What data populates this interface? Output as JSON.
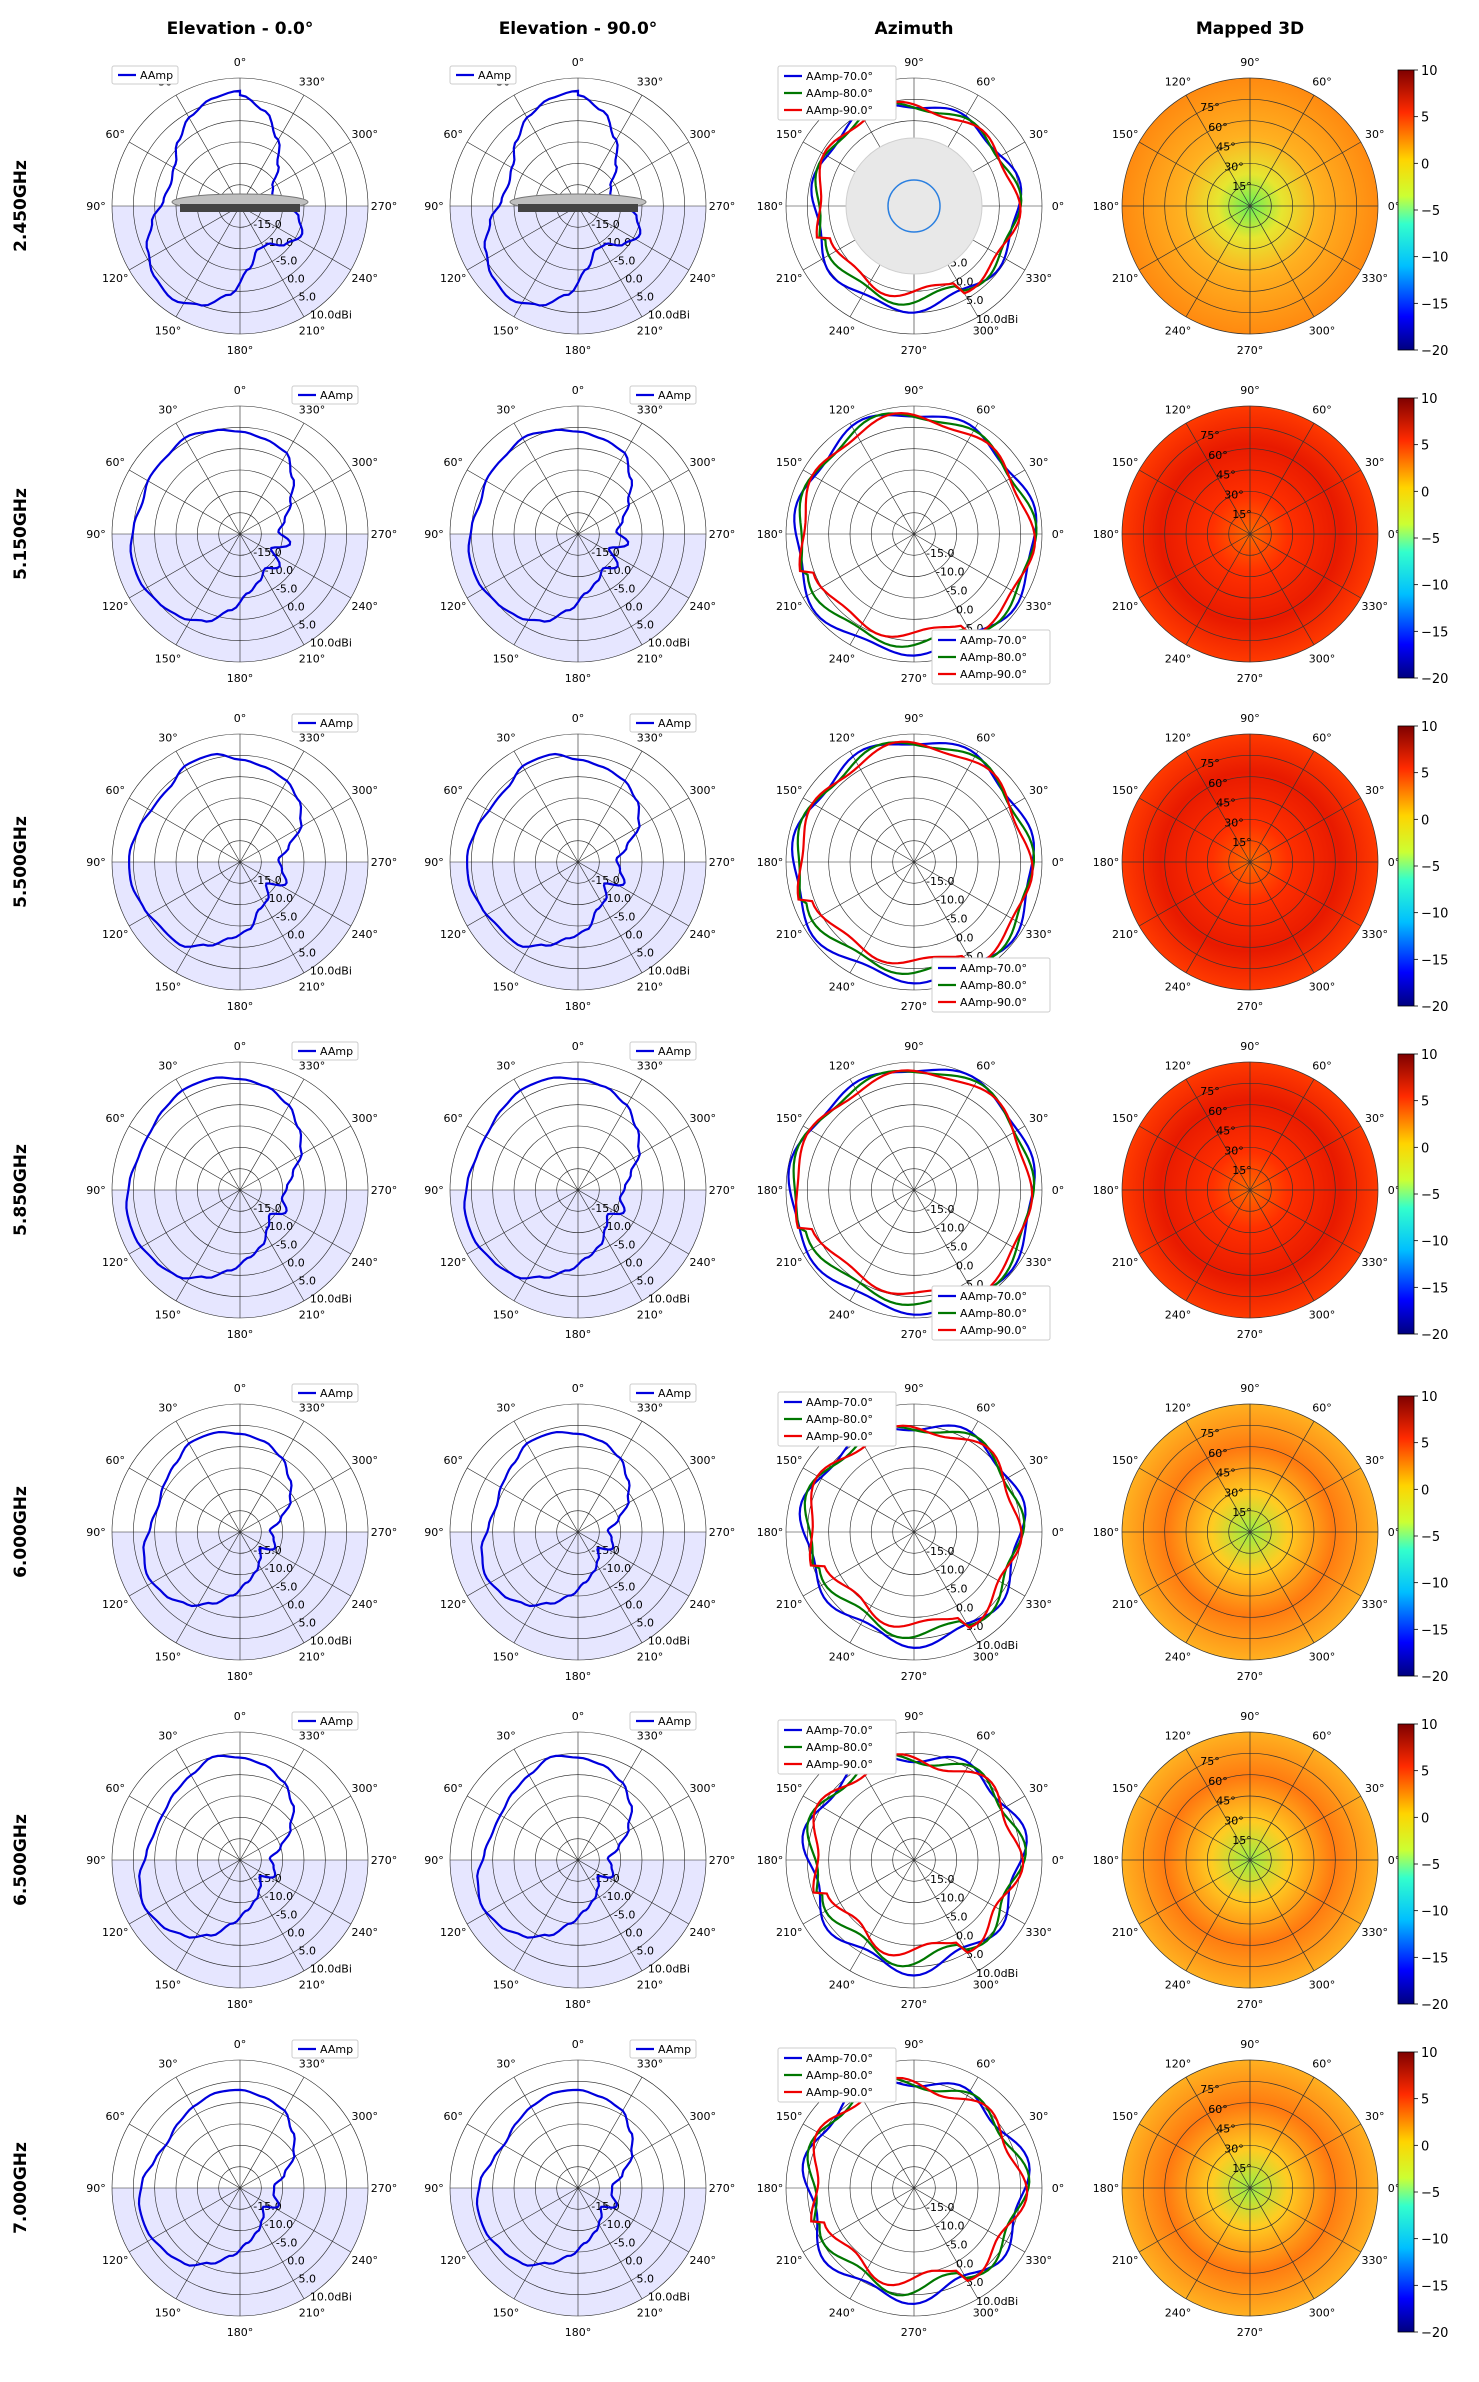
{
  "page": {
    "column_titles": [
      "Elevation - 0.0°",
      "Elevation - 90.0°",
      "Azimuth",
      "Mapped 3D"
    ],
    "row_labels": [
      "2.450GHz",
      "5.150GHz",
      "5.500GHz",
      "5.850GHz",
      "6.000GHz",
      "6.500GHz",
      "7.000GHz"
    ]
  },
  "chart_data": {
    "type": "polar",
    "description_units": "dBi",
    "radial_axis": {
      "min": -20,
      "max": 10,
      "tick_labels": [
        "-15.0",
        "-10.0",
        "-5.0",
        "0.0",
        "5.0",
        "10.0dBi"
      ]
    },
    "elevation_angle_labels": [
      "0°",
      "30°",
      "60°",
      "90°",
      "120°",
      "150°",
      "180°",
      "210°",
      "240°",
      "270°",
      "300°",
      "330°"
    ],
    "azimuth_angle_labels": [
      "0°",
      "30°",
      "60°",
      "90°",
      "120°",
      "150°",
      "180°",
      "210°",
      "240°",
      "270°",
      "300°",
      "330°"
    ],
    "elevation_legend": [
      "AAmp"
    ],
    "azimuth_legend": [
      "AAmp-70.0°",
      "AAmp-80.0°",
      "AAmp-90.0°"
    ],
    "mapped_3d": {
      "theta_labels": [
        "15°",
        "30°",
        "45°",
        "60°",
        "75°"
      ],
      "colorbar_ticks": [
        "10",
        "5",
        "0",
        "−5",
        "−10",
        "−15",
        "−20"
      ],
      "colorbar_range": [
        -20,
        10
      ]
    },
    "colors": {
      "series_blue": "#0000dd",
      "series_green": "#007700",
      "series_red": "#ee0000",
      "shade": "#e6e6ff"
    },
    "rows": [
      {
        "freq": "2.450GHz",
        "elev0": [
          7,
          6,
          4,
          1,
          -2,
          -3,
          -2,
          1,
          4,
          6,
          7,
          5,
          1,
          -5,
          -9,
          -9,
          -6,
          -4,
          -6,
          -10,
          -12,
          -11,
          -7,
          -2,
          3,
          6
        ],
        "elev90": [
          7,
          6,
          4,
          1,
          -2,
          -3,
          -2,
          1,
          4,
          6,
          7,
          5,
          1,
          -5,
          -9,
          -9,
          -6,
          -4,
          -6,
          -10,
          -12,
          -11,
          -7,
          -2,
          3,
          6
        ],
        "az": [
          {
            "base": 4.0,
            "amp": 1.0
          },
          {
            "base": 3.6,
            "amp": 1.0
          },
          {
            "base": 3.4,
            "amp": 1.0
          }
        ],
        "heat": [
          -4,
          1,
          4
        ]
      },
      {
        "freq": "5.150GHz",
        "elev0": [
          4,
          5,
          6,
          5,
          5,
          4,
          5,
          6,
          6,
          5,
          4,
          2,
          -2,
          -6,
          -8,
          -10,
          -8,
          -12,
          -8,
          -11,
          -9,
          -6,
          -2,
          2,
          3,
          4
        ],
        "elev90": [
          4,
          5,
          6,
          5,
          5,
          4,
          5,
          6,
          6,
          5,
          4,
          2,
          -2,
          -6,
          -8,
          -10,
          -8,
          -12,
          -8,
          -11,
          -9,
          -6,
          -2,
          2,
          3,
          4
        ],
        "az": [
          {
            "base": 8.0,
            "amp": 1.0
          },
          {
            "base": 7.5,
            "amp": 1.0
          },
          {
            "base": 7.0,
            "amp": 1.0
          }
        ],
        "heat": [
          4,
          6,
          7
        ]
      },
      {
        "freq": "5.500GHz",
        "elev0": [
          4,
          6,
          6,
          4,
          4,
          5,
          6,
          6,
          5,
          4,
          4,
          1,
          -2,
          -4,
          -8,
          -9,
          -12,
          -8,
          -10,
          -11,
          -8,
          -3,
          0,
          2,
          3,
          4
        ],
        "elev90": [
          4,
          6,
          6,
          4,
          4,
          5,
          6,
          6,
          5,
          4,
          4,
          1,
          -2,
          -4,
          -8,
          -9,
          -12,
          -8,
          -10,
          -11,
          -8,
          -3,
          0,
          2,
          3,
          4
        ],
        "az": [
          {
            "base": 8.0,
            "amp": 1.0
          },
          {
            "base": 7.5,
            "amp": 1.0
          },
          {
            "base": 7.0,
            "amp": 1.0
          }
        ],
        "heat": [
          4,
          6,
          7
        ]
      },
      {
        "freq": "5.850GHz",
        "elev0": [
          6,
          7,
          7,
          6,
          5,
          5,
          6,
          7,
          7,
          6,
          5,
          2,
          -1,
          -4,
          -6,
          -9,
          -11,
          -8,
          -10,
          -9,
          -7,
          -3,
          0,
          3,
          5,
          6
        ],
        "elev90": [
          6,
          7,
          7,
          6,
          5,
          5,
          6,
          7,
          7,
          6,
          5,
          2,
          -1,
          -4,
          -6,
          -9,
          -11,
          -8,
          -10,
          -9,
          -7,
          -3,
          0,
          3,
          5,
          6
        ],
        "az": [
          {
            "base": 8.5,
            "amp": 0.8
          },
          {
            "base": 8.0,
            "amp": 0.8
          },
          {
            "base": 7.5,
            "amp": 0.8
          }
        ],
        "heat": [
          5,
          7,
          8
        ]
      },
      {
        "freq": "6.000GHz",
        "elev0": [
          3,
          4,
          4,
          2,
          1,
          0,
          1,
          3,
          4,
          3,
          1,
          -2,
          -5,
          -8,
          -10,
          -12,
          -14,
          -11,
          -12,
          -13,
          -10,
          -6,
          -3,
          0,
          2,
          3
        ],
        "elev90": [
          3,
          4,
          4,
          2,
          1,
          0,
          1,
          3,
          4,
          3,
          1,
          -2,
          -5,
          -8,
          -10,
          -12,
          -14,
          -11,
          -12,
          -13,
          -10,
          -6,
          -3,
          0,
          2,
          3
        ],
        "az": [
          {
            "base": 5.5,
            "amp": 1.2
          },
          {
            "base": 5.0,
            "amp": 1.2
          },
          {
            "base": 4.5,
            "amp": 1.2
          }
        ],
        "heat": [
          -2,
          2,
          4
        ]
      },
      {
        "freq": "6.500GHz",
        "elev0": [
          4,
          5,
          3,
          2,
          1,
          1,
          2,
          4,
          5,
          4,
          2,
          -1,
          -5,
          -8,
          -10,
          -12,
          -14,
          -11,
          -12,
          -13,
          -10,
          -6,
          -2,
          1,
          3,
          4
        ],
        "elev90": [
          4,
          5,
          3,
          2,
          1,
          1,
          2,
          4,
          5,
          4,
          2,
          -1,
          -5,
          -8,
          -10,
          -12,
          -14,
          -11,
          -12,
          -13,
          -10,
          -6,
          -2,
          1,
          3,
          4
        ],
        "az": [
          {
            "base": 5.0,
            "amp": 1.5
          },
          {
            "base": 4.5,
            "amp": 1.5
          },
          {
            "base": 4.0,
            "amp": 1.5
          }
        ],
        "heat": [
          -1,
          2,
          4
        ]
      },
      {
        "freq": "7.000GHz",
        "elev0": [
          3,
          3,
          2,
          1,
          0,
          1,
          3,
          4,
          4,
          3,
          2,
          -1,
          -4,
          -7,
          -9,
          -11,
          -13,
          -10,
          -12,
          -12,
          -9,
          -5,
          -2,
          1,
          2,
          3
        ],
        "elev90": [
          3,
          3,
          2,
          1,
          0,
          1,
          3,
          4,
          4,
          3,
          2,
          -1,
          -4,
          -7,
          -9,
          -11,
          -13,
          -10,
          -12,
          -12,
          -9,
          -5,
          -2,
          1,
          2,
          3
        ],
        "az": [
          {
            "base": 5.5,
            "amp": 1.5
          },
          {
            "base": 5.0,
            "amp": 1.5
          },
          {
            "base": 4.5,
            "amp": 1.5
          }
        ],
        "heat": [
          -1,
          2,
          4
        ]
      }
    ]
  }
}
